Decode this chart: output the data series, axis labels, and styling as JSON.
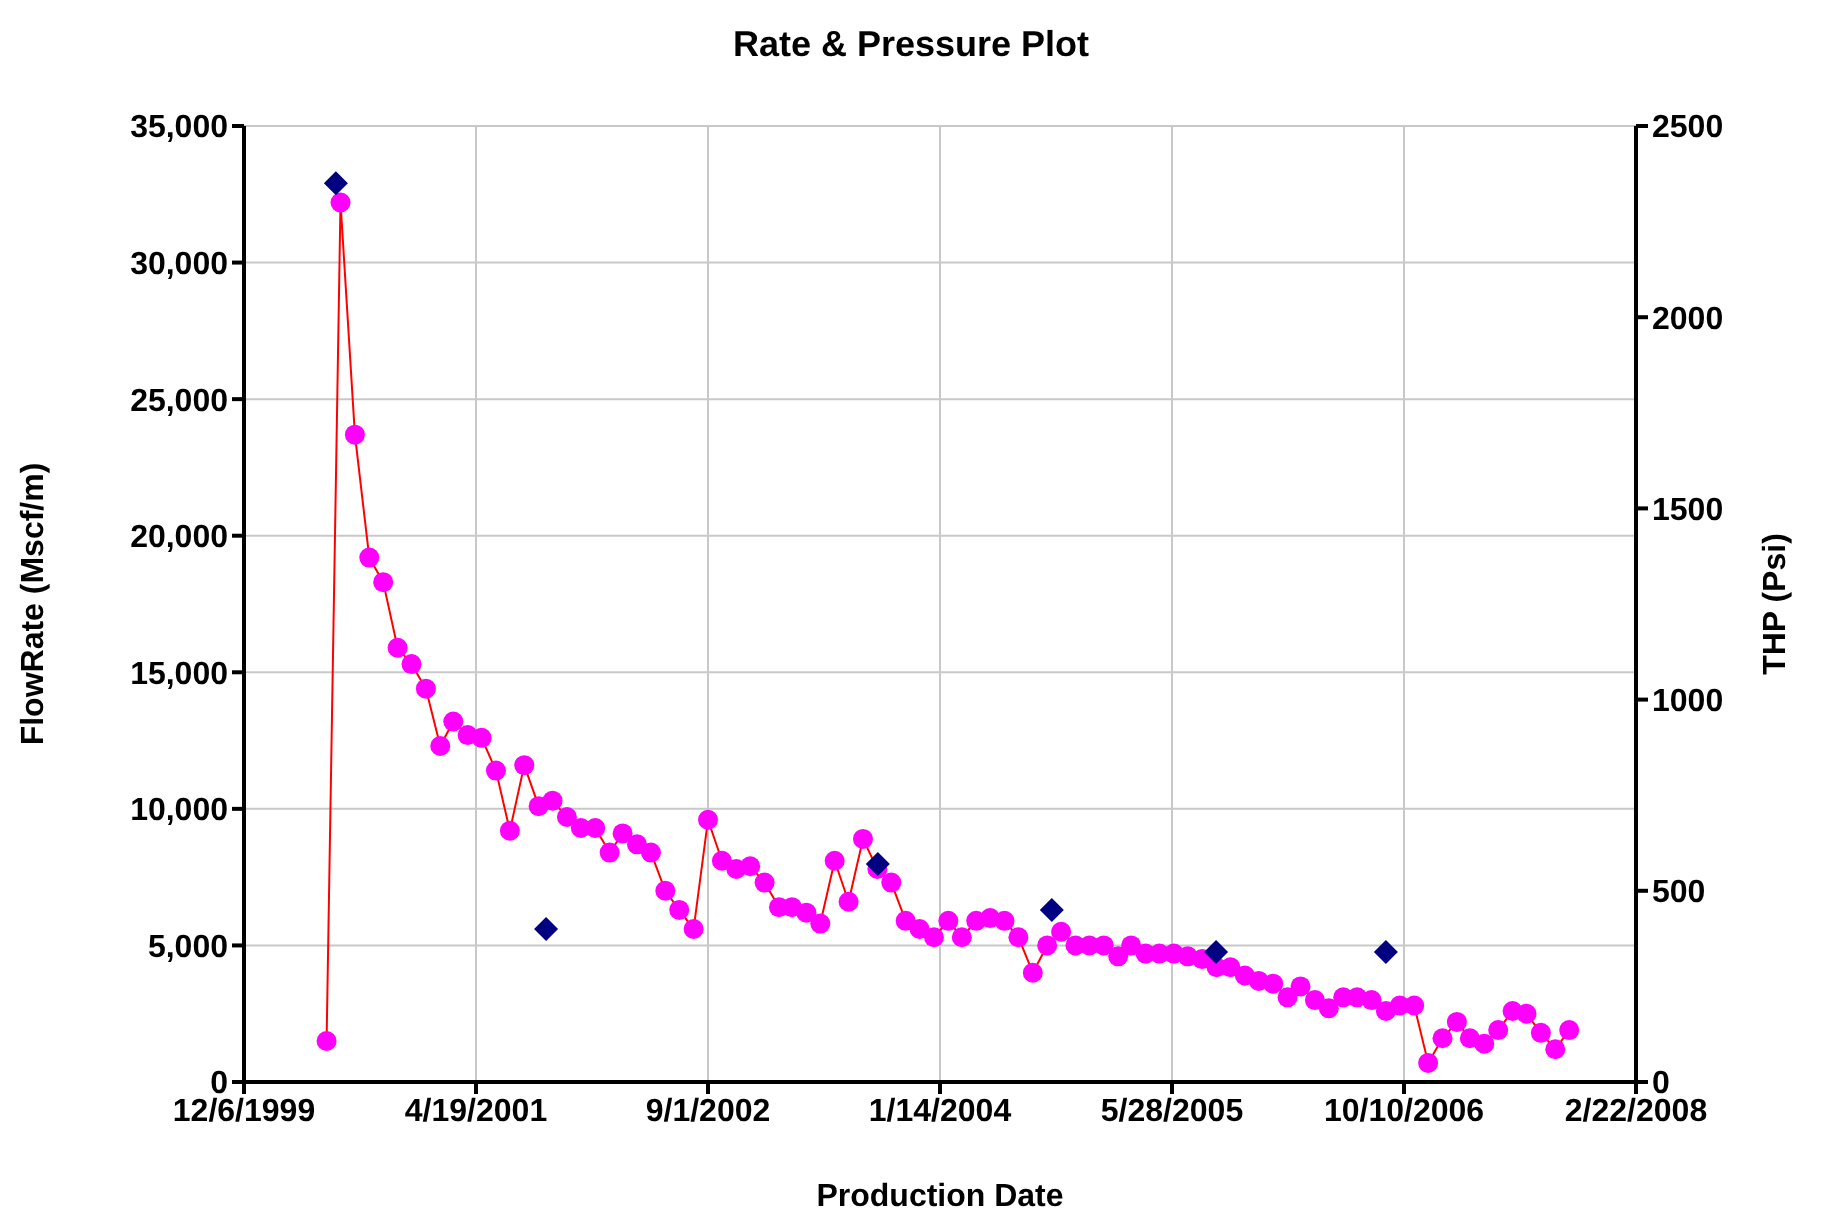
{
  "chart_data": {
    "type": "line",
    "title": "Rate & Pressure Plot",
    "xlabel": "Production Date",
    "ylabel": "FlowRate (Mscf/m)",
    "y2label": "THP (Psi)",
    "xlim": [
      "1999-12-06",
      "2008-02-22"
    ],
    "xticks": [
      {
        "value": "1999-12-06",
        "label": "12/6/1999"
      },
      {
        "value": "2001-04-19",
        "label": "4/19/2001"
      },
      {
        "value": "2002-09-01",
        "label": "9/1/2002"
      },
      {
        "value": "2004-01-14",
        "label": "1/14/2004"
      },
      {
        "value": "2005-05-28",
        "label": "5/28/2005"
      },
      {
        "value": "2006-10-10",
        "label": "10/10/2006"
      },
      {
        "value": "2008-02-22",
        "label": "2/22/2008"
      }
    ],
    "ylim": [
      0,
      35000
    ],
    "yticks": [
      0,
      {
        "value": 5000,
        "label": "5,000"
      },
      {
        "value": 10000,
        "label": "10,000"
      },
      {
        "value": 15000,
        "label": "15,000"
      },
      {
        "value": 20000,
        "label": "20,000"
      },
      {
        "value": 25000,
        "label": "25,000"
      },
      {
        "value": 30000,
        "label": "30,000"
      },
      {
        "value": 35000,
        "label": "35,000"
      }
    ],
    "y2lim": [
      0,
      2500
    ],
    "y2ticks": [
      0,
      500,
      1000,
      1500,
      2000,
      2500
    ],
    "grid": true,
    "series": [
      {
        "color": "#ff0000",
        "marker": "circle",
        "line_style": "solid",
        "x": [
          "2000-06",
          "2000-07",
          "2000-08",
          "2000-09",
          "2000-10",
          "2000-11",
          "2000-12",
          "2001-01",
          "2001-02",
          "2001-03",
          "2001-04",
          "2001-05",
          "2001-06",
          "2001-07",
          "2001-08",
          "2001-09",
          "2001-10",
          "2001-11",
          "2001-12",
          "2002-01",
          "2002-02",
          "2002-03",
          "2002-04",
          "2002-05",
          "2002-06",
          "2002-07",
          "2002-08",
          "2002-09",
          "2002-10",
          "2002-11",
          "2002-12",
          "2003-01",
          "2003-02",
          "2003-03",
          "2003-04",
          "2003-05",
          "2003-06",
          "2003-07",
          "2003-08",
          "2003-09",
          "2003-10",
          "2003-11",
          "2003-12",
          "2004-01",
          "2004-02",
          "2004-03",
          "2004-04",
          "2004-05",
          "2004-06",
          "2004-07",
          "2004-08",
          "2004-09",
          "2004-10",
          "2004-11",
          "2004-12",
          "2005-01",
          "2005-02",
          "2005-03",
          "2005-04",
          "2005-05",
          "2005-06",
          "2005-07",
          "2005-08",
          "2005-09",
          "2005-10",
          "2005-11",
          "2005-12",
          "2006-01",
          "2006-02",
          "2006-03",
          "2006-04",
          "2006-05",
          "2006-06",
          "2006-07",
          "2006-08",
          "2006-09",
          "2006-10",
          "2006-11",
          "2006-12",
          "2007-01",
          "2007-02",
          "2007-03",
          "2007-04",
          "2007-05",
          "2007-06",
          "2007-07",
          "2007-08",
          "2007-09",
          "2007-10"
        ],
        "values": [
          1500,
          32200,
          23700,
          19200,
          18300,
          15900,
          15300,
          14400,
          12300,
          13200,
          12700,
          12600,
          11400,
          9200,
          11600,
          10100,
          10300,
          9700,
          9300,
          9300,
          8400,
          9100,
          8700,
          8400,
          7000,
          6300,
          5600,
          9600,
          8100,
          7800,
          7900,
          7300,
          6400,
          6400,
          6200,
          5800,
          8100,
          6600,
          8900,
          7800,
          7300,
          5900,
          5600,
          5300,
          5900,
          5300,
          5900,
          6000,
          5900,
          5300,
          4000,
          5000,
          5500,
          5000,
          5000,
          5000,
          4600,
          5000,
          4700,
          4700,
          4700,
          4600,
          4500,
          4200,
          4200,
          3900,
          3700,
          3600,
          3100,
          3500,
          3000,
          2700,
          3100,
          3100,
          3000,
          2600,
          2800,
          2800,
          700,
          1600,
          2200,
          1600,
          1400,
          1900,
          2600,
          2500,
          1800,
          1200,
          1900
        ],
        "colors": [
          "#ff00ff",
          "#ff00ff",
          "#ff00ff",
          "#ff00ff",
          "#ff00ff",
          "#ff00ff",
          "#ff00ff",
          "#ff00ff",
          "#ff00ff",
          "#ff00ff",
          "#ff00ff",
          "#ff00ff",
          "#ff00ff",
          "#ff00ff",
          "#ff00ff",
          "#ff00ff",
          "#ff00ff",
          "#ff00ff",
          "#ff00ff",
          "#ff00ff",
          "#ff00ff",
          "#ff00ff",
          "#ff00ff",
          "#ff00ff",
          "#ff00ff",
          "#ff00ff",
          "#ff00ff",
          "#ff00ff",
          "#ff00ff",
          "#ff00ff",
          "#ff00ff",
          "#ff00ff",
          "#ff00ff",
          "#ff00ff",
          "#ff00ff",
          "#ff00ff",
          "#ff00ff",
          "#ff00ff",
          "#ff00ff",
          "#ff00ff",
          "#ff00ff",
          "#ff00ff",
          "#ff00ff",
          "#ff00ff",
          "#ff00ff",
          "#ff00ff",
          "#ff00ff",
          "#ff00ff",
          "#ff00ff",
          "#ff00ff",
          "#ff00ff",
          "#ff00ff",
          "#ff00ff",
          "#ff00ff",
          "#ff00ff",
          "#ff00ff",
          "#ff00ff",
          "#ff00ff",
          "#ff00ff",
          "#ff00ff",
          "#ff00ff",
          "#ff00ff",
          "#ff00ff",
          "#ff00ff",
          "#ff00ff",
          "#ff00ff",
          "#ff00ff",
          "#ff00ff",
          "#ff00ff",
          "#ff00ff",
          "#ff00ff",
          "#ff00ff",
          "#ff00ff",
          "#ff00ff",
          "#ff00ff",
          "#ff00ff",
          "#ff00ff",
          "#ff00ff",
          "#ff00ff",
          "#ff00ff",
          "#ff00ff",
          "#ff00ff",
          "#ff00ff",
          "#ff00ff",
          "#ff00ff",
          "#ff00ff",
          "#ff00ff",
          "#ff00ff",
          "#ff00ff"
        ]
      },
      {
        "type": "scatter",
        "axis": "y2",
        "color": "#000080",
        "marker": "diamond",
        "x": [
          "2000-06-21",
          "2001-09-17",
          "2003-09-02",
          "2004-09-11",
          "2005-08-31",
          "2006-09-01"
        ],
        "values": [
          2350,
          400,
          570,
          450,
          340,
          340
        ]
      }
    ]
  }
}
